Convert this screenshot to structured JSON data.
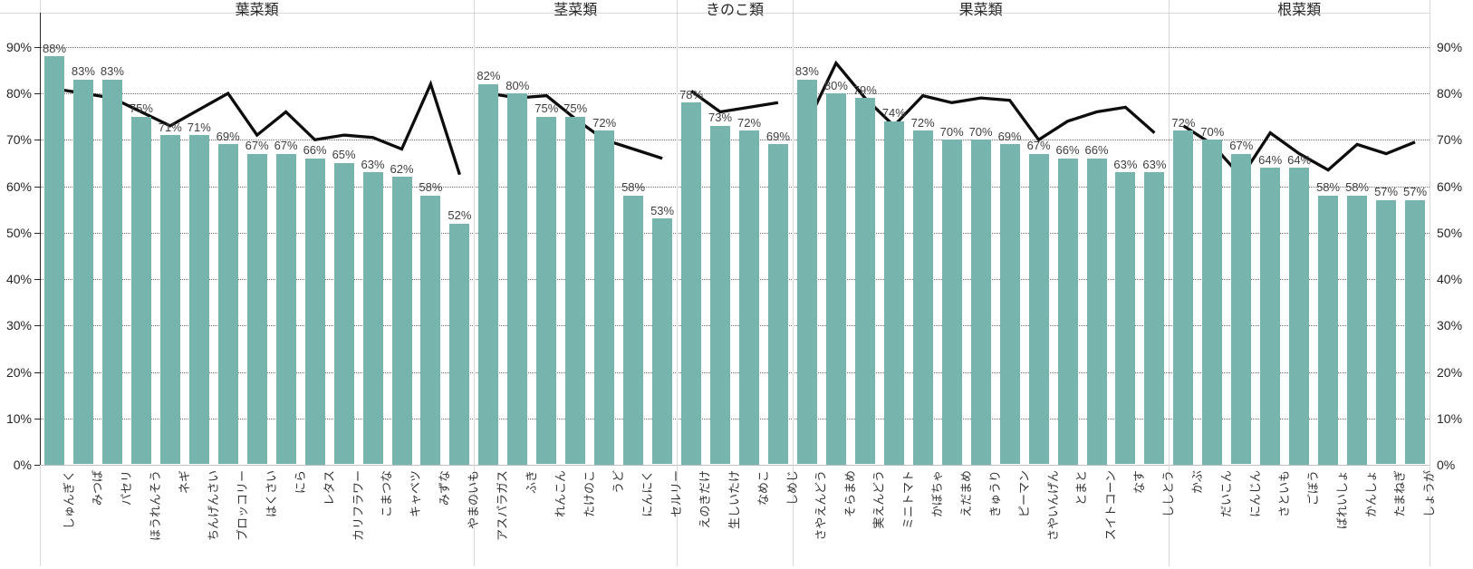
{
  "chart_data": {
    "type": "bar",
    "subtype": "bar-with-line-overlay",
    "title": "",
    "ylabel": "",
    "ylim": [
      0,
      97.4
    ],
    "grid": "horizontal-dotted",
    "legend_position": "none",
    "y_ticks_left": [
      "0%",
      "10%",
      "20%",
      "30%",
      "40%",
      "50%",
      "60%",
      "70%",
      "80%",
      "90%"
    ],
    "y_ticks_right": [
      "0%",
      "10%",
      "20%",
      "30%",
      "40%",
      "50%",
      "60%",
      "70%",
      "80%",
      "90%"
    ],
    "colors": {
      "bar": "#77B4AE",
      "line": "#0d0d0d",
      "grid": "#6e6e6e",
      "border": "#d9d9d9",
      "axis": "#262626",
      "label": "#3f3f3f"
    },
    "groups": [
      {
        "name": "葉菜類",
        "items": [
          {
            "label": "しゅんぎく",
            "bar": 88,
            "bar_label": "88%",
            "line": 81
          },
          {
            "label": "みつば",
            "bar": 83,
            "bar_label": "83%",
            "line": 80
          },
          {
            "label": "パセリ",
            "bar": 83,
            "bar_label": "83%",
            "line": 79
          },
          {
            "label": "ほうれんそう",
            "bar": 75,
            "bar_label": "75%",
            "line": 76
          },
          {
            "label": "ネギ",
            "bar": 71,
            "bar_label": "71%",
            "line": 73
          },
          {
            "label": "ちんげんさい",
            "bar": 71,
            "bar_label": "71%",
            "line": 76.5
          },
          {
            "label": "ブロッコリー",
            "bar": 69,
            "bar_label": "69%",
            "line": 80
          },
          {
            "label": "はくさい",
            "bar": 67,
            "bar_label": "67%",
            "line": 71
          },
          {
            "label": "にら",
            "bar": 67,
            "bar_label": "67%",
            "line": 76
          },
          {
            "label": "レタス",
            "bar": 66,
            "bar_label": "66%",
            "line": 70
          },
          {
            "label": "カリフラワー",
            "bar": 65,
            "bar_label": "65%",
            "line": 71
          },
          {
            "label": "こまつな",
            "bar": 63,
            "bar_label": "63%",
            "line": 70.5
          },
          {
            "label": "キャベツ",
            "bar": 62,
            "bar_label": "62%",
            "line": 68
          },
          {
            "label": "みずな",
            "bar": 58,
            "bar_label": "58%",
            "line": 82
          },
          {
            "label": "やまのいも",
            "bar": 52,
            "bar_label": "52%",
            "line": 62.5
          }
        ]
      },
      {
        "name": "茎菜類",
        "items": [
          {
            "label": "アスパラガス",
            "bar": 82,
            "bar_label": "82%",
            "line": 80
          },
          {
            "label": "ふき",
            "bar": 80,
            "bar_label": "80%",
            "line": 79
          },
          {
            "label": "れんこん",
            "bar": 75,
            "bar_label": "75%",
            "line": 79.5
          },
          {
            "label": "たけのこ",
            "bar": 75,
            "bar_label": "75%",
            "line": 74.5
          },
          {
            "label": "うど",
            "bar": 72,
            "bar_label": "72%",
            "line": 70
          },
          {
            "label": "にんにく",
            "bar": 58,
            "bar_label": "58%",
            "line": 68
          },
          {
            "label": "セルリー",
            "bar": 53,
            "bar_label": "53%",
            "line": 66
          }
        ]
      },
      {
        "name": "きのこ類",
        "items": [
          {
            "label": "えのきだけ",
            "bar": 78,
            "bar_label": "78%",
            "line": 80.5
          },
          {
            "label": "生しいたけ",
            "bar": 73,
            "bar_label": "73%",
            "line": 76
          },
          {
            "label": "なめこ",
            "bar": 72,
            "bar_label": "72%",
            "line": 77
          },
          {
            "label": "しめじ",
            "bar": 69,
            "bar_label": "69%",
            "line": 78
          }
        ]
      },
      {
        "name": "果菜類",
        "items": [
          {
            "label": "さやえんどう",
            "bar": 83,
            "bar_label": "83%",
            "line": 73.5
          },
          {
            "label": "そらまめ",
            "bar": 80,
            "bar_label": "80%",
            "line": 86.5
          },
          {
            "label": "実えんどう",
            "bar": 79,
            "bar_label": "79%",
            "line": 79
          },
          {
            "label": "ミニトマト",
            "bar": 74,
            "bar_label": "74%",
            "line": 73
          },
          {
            "label": "かぼちゃ",
            "bar": 72,
            "bar_label": "72%",
            "line": 79.5
          },
          {
            "label": "えだまめ",
            "bar": 70,
            "bar_label": "70%",
            "line": 78
          },
          {
            "label": "きゅうり",
            "bar": 70,
            "bar_label": "70%",
            "line": 79
          },
          {
            "label": "ピーマン",
            "bar": 69,
            "bar_label": "69%",
            "line": 78.5
          },
          {
            "label": "さやいんげん",
            "bar": 67,
            "bar_label": "67%",
            "line": 70
          },
          {
            "label": "とまと",
            "bar": 66,
            "bar_label": "66%",
            "line": 74
          },
          {
            "label": "スイトコーン",
            "bar": 66,
            "bar_label": "66%",
            "line": 76
          },
          {
            "label": "なす",
            "bar": 63,
            "bar_label": "63%",
            "line": 77
          },
          {
            "label": "ししとう",
            "bar": 63,
            "bar_label": "63%",
            "line": 71.5
          }
        ]
      },
      {
        "name": "根菜類",
        "items": [
          {
            "label": "かぶ",
            "bar": 72,
            "bar_label": "72%",
            "line": 73
          },
          {
            "label": "だいこん",
            "bar": 70,
            "bar_label": "70%",
            "line": 69
          },
          {
            "label": "にんじん",
            "bar": 67,
            "bar_label": "67%",
            "line": 62
          },
          {
            "label": "さといも",
            "bar": 64,
            "bar_label": "64%",
            "line": 71.5
          },
          {
            "label": "ごぼう",
            "bar": 64,
            "bar_label": "64%",
            "line": 67
          },
          {
            "label": "ばれいしょ",
            "bar": 58,
            "bar_label": "58%",
            "line": 63.5
          },
          {
            "label": "かんしょ",
            "bar": 58,
            "bar_label": "58%",
            "line": 69
          },
          {
            "label": "たまねぎ",
            "bar": 57,
            "bar_label": "57%",
            "line": 67
          },
          {
            "label": "しょうが",
            "bar": 57,
            "bar_label": "57%",
            "line": 69.5
          }
        ]
      }
    ]
  }
}
